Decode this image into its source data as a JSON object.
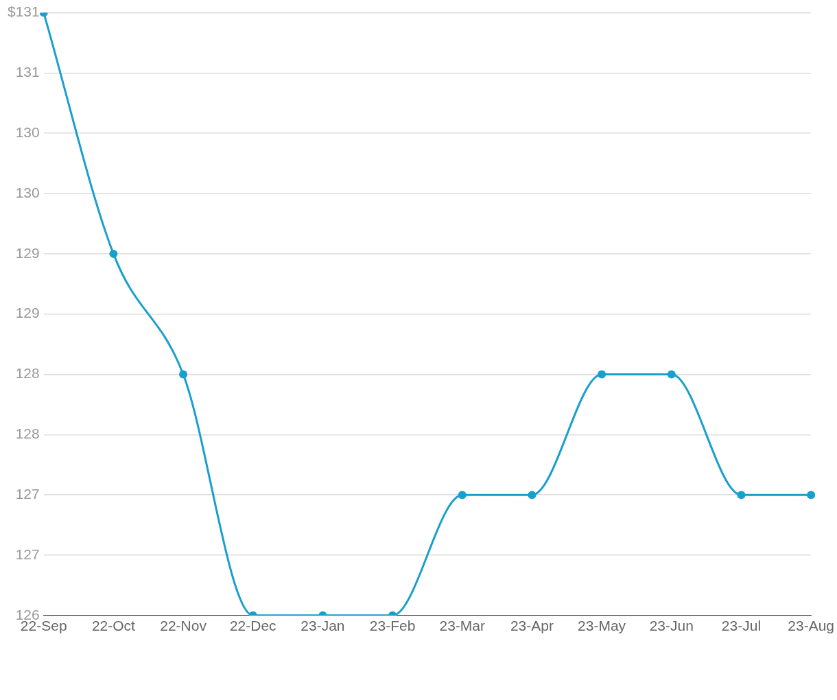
{
  "chart_data": {
    "type": "line",
    "categories": [
      "22-Sep",
      "22-Oct",
      "22-Nov",
      "22-Dec",
      "23-Jan",
      "23-Feb",
      "23-Mar",
      "23-Apr",
      "23-May",
      "23-Jun",
      "23-Jul",
      "23-Aug"
    ],
    "series": [
      {
        "color": "#1a9fcd",
        "values": [
          131,
          129,
          128,
          126,
          126,
          126,
          127,
          127,
          128,
          128,
          127,
          127
        ]
      }
    ],
    "ylim": [
      126,
      131
    ],
    "yticks": [
      {
        "value": 126,
        "label": "126"
      },
      {
        "value": 126.5,
        "label": "127"
      },
      {
        "value": 127,
        "label": "127"
      },
      {
        "value": 127.5,
        "label": "128"
      },
      {
        "value": 128,
        "label": "128"
      },
      {
        "value": 128.5,
        "label": "129"
      },
      {
        "value": 129,
        "label": "129"
      },
      {
        "value": 129.5,
        "label": "130"
      },
      {
        "value": 130,
        "label": "130"
      },
      {
        "value": 130.5,
        "label": "131"
      },
      {
        "value": 131,
        "label": "$131"
      }
    ],
    "grid": "y",
    "legend": false,
    "marker": "circle",
    "line_style": "solid"
  }
}
